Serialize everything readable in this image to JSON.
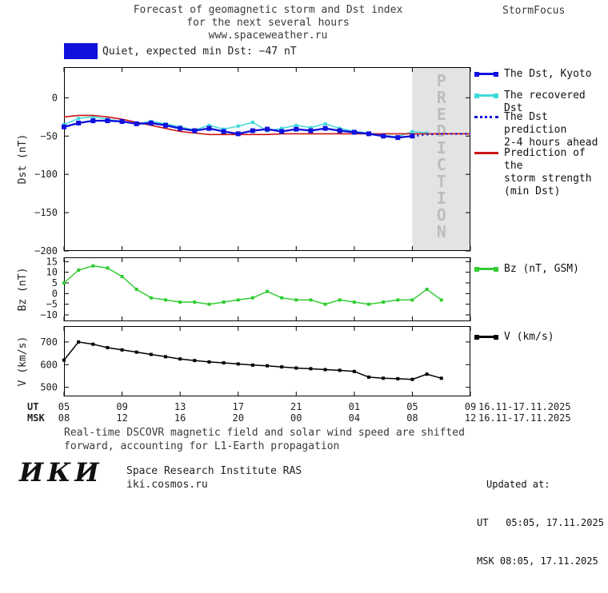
{
  "header": {
    "title_line1": "Forecast of geomagnetic storm and Dst index",
    "title_line2": "for the next several hours",
    "title_line3": "www.spaceweather.ru",
    "brand": "StormFocus"
  },
  "status": {
    "label": "Quiet, expected min Dst: −47 nT",
    "swatch_color": "#1111dd"
  },
  "legend": {
    "dst_kyoto": "The Dst, Kyoto",
    "recovered": "The recovered Dst",
    "prediction_line1": "The Dst prediction",
    "prediction_line2": "2-4 hours ahead",
    "storm_line1": "Prediction of the",
    "storm_line2": "storm strength",
    "storm_line3": "(min Dst)",
    "bz": "Bz (nT, GSM)",
    "v": "V (km/s)"
  },
  "xaxis": {
    "ut_label": "UT",
    "msk_label": "MSK",
    "ut_ticks": [
      "05",
      "09",
      "13",
      "17",
      "21",
      "01",
      "05",
      "09"
    ],
    "msk_ticks": [
      "08",
      "12",
      "16",
      "20",
      "00",
      "04",
      "08",
      "12"
    ],
    "date_range": "16.11-17.11.2025"
  },
  "footer": {
    "note_line1": "Real-time DSCOVR magnetic field and solar wind speed are shifted",
    "note_line2": "forward, accounting for L1-Earth propagation",
    "logo": "ИКИ",
    "institute": "Space Research Institute RAS",
    "site": "iki.cosmos.ru",
    "updated_label": "Updated at:",
    "updated_ut": "UT   05:05, 17.11.2025",
    "updated_msk": "MSK 08:05, 17.11.2025"
  },
  "chart_data": [
    {
      "type": "line",
      "ylabel": "Dst (nT)",
      "ylim": [
        -200,
        40
      ],
      "yticks": [
        0,
        -50,
        -100,
        -150,
        -200
      ],
      "xlim": [
        0,
        28
      ],
      "xticks": [
        0,
        4,
        8,
        12,
        16,
        20,
        24,
        28
      ],
      "prediction_band": {
        "start": 24,
        "end": 28,
        "label": "PREDICTION",
        "color": "#e3e3e3",
        "text_color": "#bdbdbd"
      },
      "series": [
        {
          "name": "The recovered Dst",
          "color": "#3fd9d9",
          "width": 1.5,
          "marker": true,
          "msize": 4,
          "x": [
            0,
            1,
            2,
            3,
            4,
            5,
            6,
            7,
            8,
            9,
            10,
            11,
            12,
            13,
            14,
            15,
            16,
            17,
            18,
            19,
            20,
            21,
            22,
            23,
            24,
            25
          ],
          "y": [
            -35,
            -27,
            -25,
            -28,
            -31,
            -34,
            -31,
            -34,
            -38,
            -42,
            -36,
            -41,
            -37,
            -32,
            -43,
            -40,
            -36,
            -39,
            -34,
            -40,
            -44,
            -46,
            -49,
            -51,
            -44,
            -46
          ]
        },
        {
          "name": "Prediction of the storm strength (min Dst)",
          "color": "#cc1414",
          "width": 1.6,
          "x": [
            0,
            1,
            2,
            3,
            4,
            5,
            6,
            7,
            8,
            9,
            10,
            11,
            12,
            13,
            14,
            15,
            16,
            17,
            18,
            19,
            20,
            21,
            22,
            23,
            24,
            25,
            26,
            27,
            28
          ],
          "y": [
            -25,
            -23,
            -23,
            -25,
            -28,
            -32,
            -36,
            -40,
            -44,
            -46,
            -48,
            -48,
            -48,
            -48,
            -48,
            -47,
            -47,
            -47,
            -47,
            -47,
            -47,
            -47,
            -47,
            -47,
            -47,
            -47,
            -47,
            -47,
            -47
          ]
        },
        {
          "name": "The Dst, Kyoto",
          "color": "#1111dd",
          "width": 2.4,
          "marker": true,
          "msize": 6,
          "x": [
            0,
            1,
            2,
            3,
            4,
            5,
            6,
            7,
            8,
            9,
            10,
            11,
            12,
            13,
            14,
            15,
            16,
            17,
            18,
            19,
            20,
            21,
            22,
            23,
            24
          ],
          "y": [
            -38,
            -33,
            -30,
            -30,
            -31,
            -34,
            -33,
            -36,
            -40,
            -43,
            -40,
            -44,
            -47,
            -43,
            -41,
            -44,
            -41,
            -43,
            -40,
            -43,
            -45,
            -47,
            -50,
            -52,
            -50
          ]
        },
        {
          "name": "The Dst prediction 2-4 hours ahead",
          "color": "#1111dd",
          "width": 2.4,
          "dash": "2 4",
          "x": [
            24,
            25,
            26,
            27,
            28
          ],
          "y": [
            -50,
            -48,
            -47,
            -47,
            -47
          ]
        }
      ]
    },
    {
      "type": "line",
      "ylabel": "Bz (nT)",
      "ylim": [
        -13,
        17
      ],
      "yticks": [
        15,
        10,
        5,
        0,
        -5,
        -10
      ],
      "xlim": [
        0,
        28
      ],
      "xticks": [
        0,
        4,
        8,
        12,
        16,
        20,
        24,
        28
      ],
      "series": [
        {
          "name": "Bz (nT, GSM)",
          "color": "#33cc33",
          "width": 1.5,
          "marker": true,
          "msize": 4,
          "x": [
            0,
            1,
            2,
            3,
            4,
            5,
            6,
            7,
            8,
            9,
            10,
            11,
            12,
            13,
            14,
            15,
            16,
            17,
            18,
            19,
            20,
            21,
            22,
            23,
            24,
            25,
            26
          ],
          "y": [
            5,
            11,
            13,
            12,
            8,
            2,
            -2,
            -3,
            -4,
            -4,
            -5,
            -4,
            -3,
            -2,
            1,
            -2,
            -3,
            -3,
            -5,
            -3,
            -4,
            -5,
            -4,
            -3,
            -3,
            2,
            -3
          ]
        }
      ]
    },
    {
      "type": "line",
      "ylabel": "V (km/s)",
      "ylim": [
        460,
        770
      ],
      "yticks": [
        700,
        600,
        500
      ],
      "xlim": [
        0,
        28
      ],
      "xticks": [
        0,
        4,
        8,
        12,
        16,
        20,
        24,
        28
      ],
      "series": [
        {
          "name": "V (km/s)",
          "color": "#000000",
          "width": 1.5,
          "marker": true,
          "msize": 4,
          "x": [
            0,
            1,
            2,
            3,
            4,
            5,
            6,
            7,
            8,
            9,
            10,
            11,
            12,
            13,
            14,
            15,
            16,
            17,
            18,
            19,
            20,
            21,
            22,
            23,
            24,
            25,
            26
          ],
          "y": [
            620,
            700,
            690,
            675,
            665,
            655,
            645,
            635,
            625,
            618,
            612,
            608,
            603,
            598,
            595,
            590,
            585,
            582,
            578,
            575,
            570,
            545,
            540,
            538,
            535,
            558,
            540
          ]
        }
      ]
    }
  ]
}
